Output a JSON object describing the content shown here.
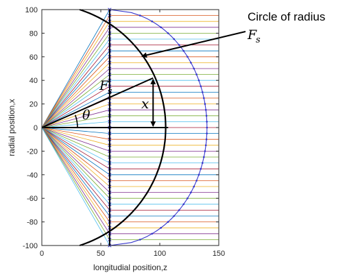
{
  "chart_data": {
    "type": "line",
    "title": "",
    "xlabel": "longitudial position,z",
    "ylabel": "radial position,x",
    "xlim": [
      0,
      150
    ],
    "ylim": [
      -100,
      100
    ],
    "xticks": [
      0,
      50,
      100,
      150
    ],
    "yticks": [
      -100,
      -80,
      -60,
      -40,
      -20,
      0,
      20,
      40,
      60,
      80,
      100
    ],
    "grid": false,
    "focus": {
      "z": 0,
      "x": 0
    },
    "ray_count": 41,
    "ray_colors": [
      "#0072BD",
      "#D95319",
      "#EDB120",
      "#7E2F8E",
      "#77AC30",
      "#4DBEEE",
      "#A2142F"
    ],
    "refraction_surface": {
      "type": "hyperbola",
      "vertex_z": 57.5,
      "end_points_z": 57.5,
      "end_points_x": [
        100,
        -100
      ],
      "marker": "x",
      "color": "#3333cc"
    },
    "wavefront_curve": {
      "vertex_z": 140,
      "ends_z": 57.5,
      "ends_x": [
        100,
        -100
      ],
      "marker": ".",
      "color": "#3333cc"
    },
    "reference_circle": {
      "center_z": 0,
      "center_x": 0,
      "radius": 105,
      "color": "#000000"
    },
    "annotations": {
      "circle_label": "Circle of radius",
      "circle_label_symbol": "F",
      "circle_label_subscript": "s",
      "radius_symbol": "F",
      "radius_subscript": "s",
      "angle_symbol": "θ",
      "height_symbol": "x",
      "example_ray": {
        "angle_deg": 24,
        "x": 42
      }
    }
  }
}
